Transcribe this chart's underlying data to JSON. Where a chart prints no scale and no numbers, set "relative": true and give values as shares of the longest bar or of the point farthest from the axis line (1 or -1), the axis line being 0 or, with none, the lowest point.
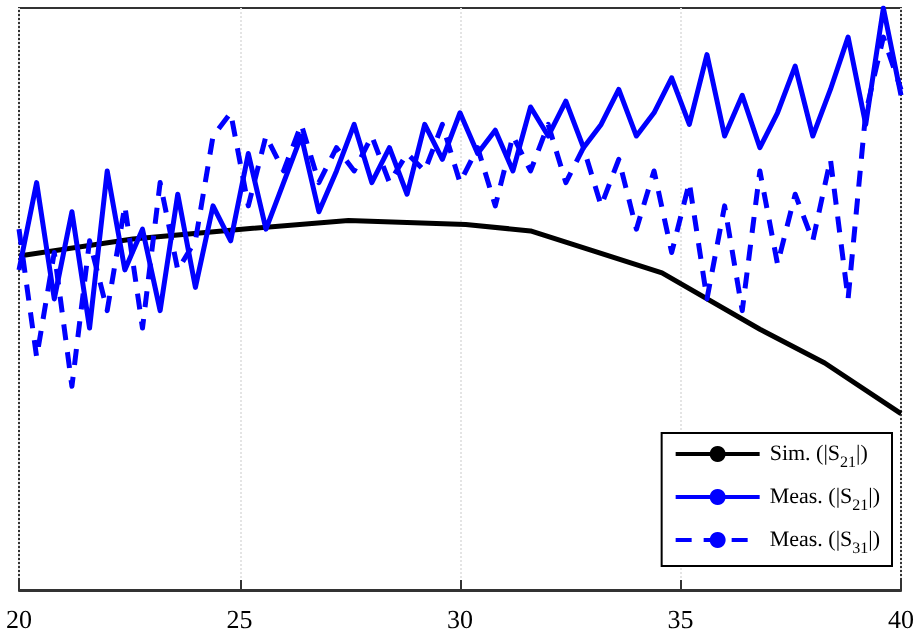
{
  "chart_data": {
    "type": "line",
    "relative": true,
    "xlim": [
      20,
      40
    ],
    "xticks": [
      20,
      25,
      30,
      35,
      40
    ],
    "grid": true,
    "legend": "bottom right",
    "marker": "none",
    "series": [
      {
        "name": "Sim. (|S$_{21}$|)",
        "color": "#000000",
        "line_style": "solid",
        "x": [
          20,
          22.58,
          25.24,
          27.47,
          30.13,
          31.6,
          34.58,
          36.8,
          38.27,
          40
        ],
        "values": [
          0.574,
          0.603,
          0.621,
          0.635,
          0.628,
          0.617,
          0.545,
          0.448,
          0.39,
          0.303
        ]
      },
      {
        "name": "Meas. (|S$_{21}$|)",
        "color": "#0000ff",
        "line_style": "solid",
        "values": [
          0.55,
          0.7,
          0.5,
          0.65,
          0.45,
          0.72,
          0.55,
          0.62,
          0.48,
          0.68,
          0.52,
          0.66,
          0.6,
          0.75,
          0.62,
          0.7,
          0.78,
          0.65,
          0.72,
          0.8,
          0.7,
          0.76,
          0.68,
          0.8,
          0.74,
          0.82,
          0.75,
          0.79,
          0.72,
          0.83,
          0.78,
          0.84,
          0.76,
          0.8,
          0.86,
          0.78,
          0.82,
          0.88,
          0.8,
          0.92,
          0.78,
          0.85,
          0.76,
          0.82,
          0.9,
          0.78,
          0.86,
          0.95,
          0.8,
          1.0,
          0.85
        ]
      },
      {
        "name": "Meas. (|S$_{31}$|)",
        "color": "#0000ff",
        "line_style": "dashed",
        "values": [
          0.62,
          0.4,
          0.58,
          0.35,
          0.6,
          0.48,
          0.66,
          0.45,
          0.7,
          0.55,
          0.6,
          0.78,
          0.82,
          0.66,
          0.78,
          0.72,
          0.8,
          0.7,
          0.76,
          0.72,
          0.78,
          0.7,
          0.75,
          0.72,
          0.8,
          0.7,
          0.76,
          0.66,
          0.78,
          0.72,
          0.8,
          0.7,
          0.76,
          0.66,
          0.74,
          0.62,
          0.72,
          0.58,
          0.7,
          0.5,
          0.66,
          0.48,
          0.72,
          0.56,
          0.68,
          0.6,
          0.74,
          0.5,
          0.82,
          0.95,
          0.86
        ]
      }
    ],
    "x": [
      20,
      20.4,
      20.8,
      21.2,
      21.6,
      22,
      22.4,
      22.8,
      23.2,
      23.6,
      24,
      24.4,
      24.8,
      25.2,
      25.6,
      26,
      26.4,
      26.8,
      27.2,
      27.6,
      28,
      28.4,
      28.8,
      29.2,
      29.6,
      30,
      30.4,
      30.8,
      31.2,
      31.6,
      32,
      32.4,
      32.8,
      33.2,
      33.6,
      34,
      34.4,
      34.8,
      35.2,
      35.6,
      36,
      36.4,
      36.8,
      37.2,
      37.6,
      38,
      38.4,
      38.8,
      39.2,
      39.6,
      40
    ]
  }
}
